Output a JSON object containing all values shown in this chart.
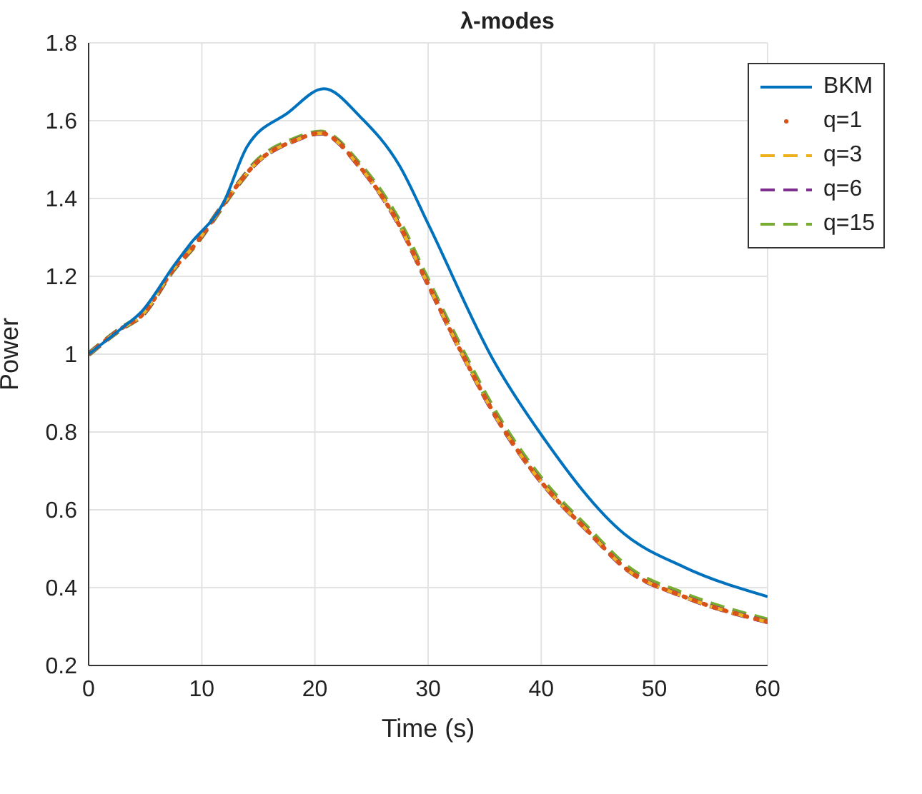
{
  "chart_data": {
    "type": "line",
    "title": "λ-modes",
    "xlabel": "Time (s)",
    "ylabel": "Power",
    "xlim": [
      0,
      60
    ],
    "xticks": [
      0,
      10,
      20,
      30,
      40,
      50,
      60
    ],
    "ylim": [
      0.2,
      1.8
    ],
    "yticks": [
      0.2,
      0.4,
      0.6,
      0.8,
      1,
      1.2,
      1.4,
      1.6,
      1.8
    ],
    "grid": true,
    "legend": "top right",
    "marker": "none",
    "series": [
      {
        "name": "BKM",
        "color": "#0072bd",
        "line_style": "solid",
        "x": [
          0,
          2.9,
          4.7,
          7.6,
          9,
          11.9,
          14,
          17.6,
          20.8,
          24,
          27.5,
          30.1,
          35.8,
          40.1,
          47.3,
          52.6,
          60
        ],
        "values": [
          1,
          1.066,
          1.11,
          1.23,
          1.284,
          1.388,
          1.533,
          1.62,
          1.682,
          1.61,
          1.483,
          1.329,
          0.983,
          0.789,
          0.539,
          0.453,
          0.377
        ]
      },
      {
        "name": "q=1",
        "color": "#d95319",
        "line_style": "dotted",
        "x": [
          0,
          2.9,
          4.7,
          7.6,
          9,
          13.3,
          14.6,
          18.3,
          20.5,
          24,
          27.5,
          29.7,
          32.9,
          36.1,
          40.1,
          44.1,
          47.6,
          52.6,
          60
        ],
        "values": [
          1,
          1.066,
          1.1,
          1.222,
          1.267,
          1.44,
          1.485,
          1.55,
          1.568,
          1.48,
          1.329,
          1.197,
          1.007,
          0.834,
          0.668,
          0.546,
          0.446,
          0.377,
          0.312
        ]
      },
      {
        "name": "q=3",
        "color": "#edb120",
        "line_style": "dashed",
        "x": [
          0,
          2.9,
          4.7,
          7.6,
          9,
          13.3,
          14.6,
          18.3,
          20.5,
          24,
          27.5,
          29.7,
          32.9,
          36.1,
          40.1,
          44.1,
          47.6,
          52.6,
          60
        ],
        "values": [
          1,
          1.066,
          1.1,
          1.222,
          1.267,
          1.44,
          1.485,
          1.55,
          1.568,
          1.48,
          1.329,
          1.197,
          1.007,
          0.834,
          0.668,
          0.546,
          0.446,
          0.377,
          0.312
        ]
      },
      {
        "name": "q=6",
        "color": "#7e2f8e",
        "line_style": "dashed",
        "x": [
          0,
          2.9,
          4.7,
          7.6,
          9,
          13.3,
          14.6,
          18.3,
          20.5,
          24,
          27.5,
          29.7,
          32.9,
          36.1,
          40.1,
          44.1,
          47.6,
          52.6,
          60
        ],
        "values": [
          1,
          1.066,
          1.1,
          1.222,
          1.267,
          1.44,
          1.485,
          1.55,
          1.568,
          1.48,
          1.329,
          1.197,
          1.007,
          0.834,
          0.668,
          0.546,
          0.446,
          0.377,
          0.312
        ]
      },
      {
        "name": "q=15",
        "color": "#77ac30",
        "line_style": "dashed",
        "x": [
          0,
          2.9,
          4.7,
          7.6,
          9,
          13.3,
          14.6,
          18.3,
          20.5,
          24,
          27.5,
          29.7,
          32.9,
          36.1,
          40.1,
          44.1,
          47.6,
          52.6,
          60
        ],
        "values": [
          1,
          1.066,
          1.1,
          1.222,
          1.267,
          1.44,
          1.487,
          1.553,
          1.57,
          1.485,
          1.337,
          1.205,
          1.015,
          0.842,
          0.675,
          0.552,
          0.452,
          0.383,
          0.316
        ]
      }
    ]
  }
}
